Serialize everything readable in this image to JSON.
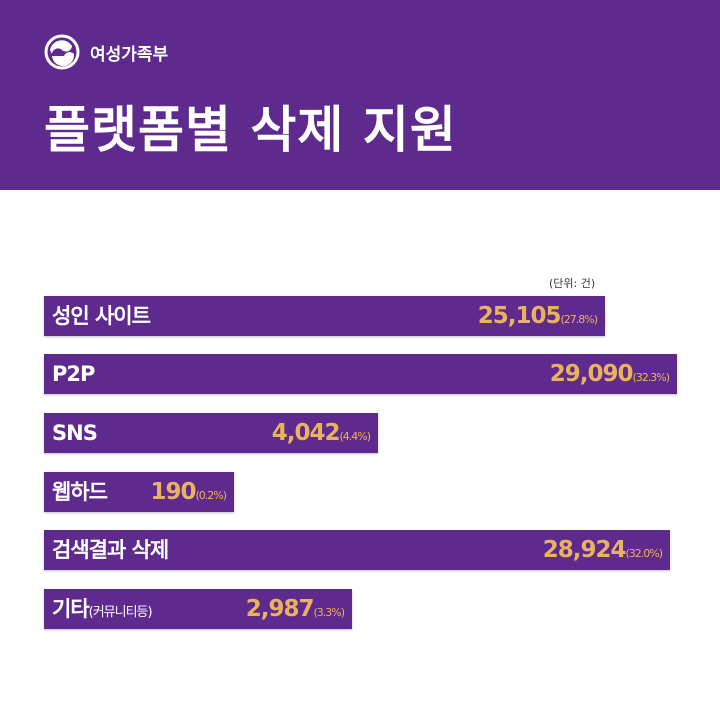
{
  "header": {
    "logo_text": "여성가족부",
    "title": "플랫폼별 삭제 지원",
    "background": "#5f2a8e"
  },
  "chart_data": {
    "type": "bar",
    "orientation": "horizontal",
    "unit_label": "(단위: 건)",
    "bar_color": "#5f2a8e",
    "value_color": "#e9b25e",
    "categories": [
      "성인 사이트",
      "P2P",
      "SNS",
      "웹하드",
      "검색결과 삭제",
      "기타"
    ],
    "category_notes": [
      "",
      "",
      "",
      "",
      "",
      "(커뮤니티등)"
    ],
    "values": [
      25105,
      29090,
      4042,
      190,
      28924,
      2987
    ],
    "value_labels": [
      "25,105",
      "29,090",
      "4,042",
      "190",
      "28,924",
      "2,987"
    ],
    "percent_labels": [
      "(27.8%)",
      "(32.3%)",
      "(4.4%)",
      "(0.2%)",
      "(32.0%)",
      "(3.3%)"
    ]
  }
}
